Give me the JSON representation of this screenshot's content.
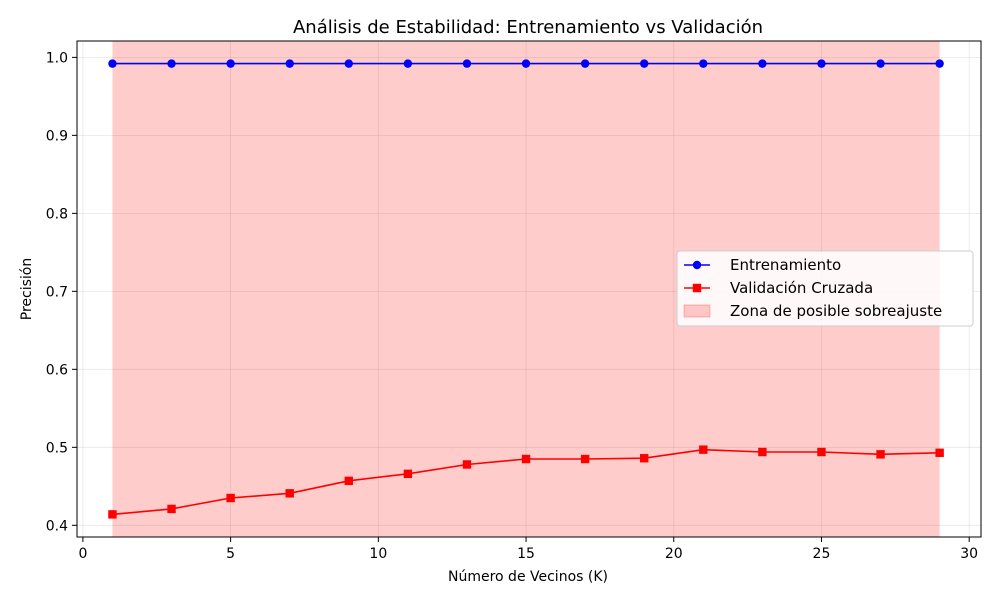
{
  "chart_data": {
    "type": "line",
    "title": "Análisis de Estabilidad: Entrenamiento vs Validación",
    "xlabel": "Número de Vecinos (K)",
    "ylabel": "Precisión",
    "xlim": [
      -0.2,
      30.4
    ],
    "ylim": [
      0.385,
      1.021
    ],
    "xticks": [
      0,
      5,
      10,
      15,
      20,
      25,
      30
    ],
    "yticks": [
      0.4,
      0.5,
      0.6,
      0.7,
      0.8,
      0.9,
      1.0
    ],
    "ytick_labels": [
      "0.4",
      "0.5",
      "0.6",
      "0.7",
      "0.8",
      "0.9",
      "1.0"
    ],
    "grid": true,
    "legend_position": "center-right",
    "x": [
      1,
      3,
      5,
      7,
      9,
      11,
      13,
      15,
      17,
      19,
      21,
      23,
      25,
      27,
      29
    ],
    "series": [
      {
        "name": "Entrenamiento",
        "color": "#0000ff",
        "marker": "circle",
        "values": [
          0.992,
          0.992,
          0.992,
          0.992,
          0.992,
          0.992,
          0.992,
          0.992,
          0.992,
          0.992,
          0.992,
          0.992,
          0.992,
          0.992,
          0.992
        ]
      },
      {
        "name": "Validación Cruzada",
        "color": "#ff0000",
        "marker": "square",
        "values": [
          0.414,
          0.421,
          0.435,
          0.441,
          0.457,
          0.466,
          0.478,
          0.485,
          0.485,
          0.486,
          0.497,
          0.494,
          0.494,
          0.491,
          0.493
        ]
      }
    ],
    "shaded_region": {
      "name": "Zona de posible sobreajuste",
      "x_start": 1,
      "x_end": 29,
      "color": "#ff0000",
      "opacity": 0.2
    }
  }
}
